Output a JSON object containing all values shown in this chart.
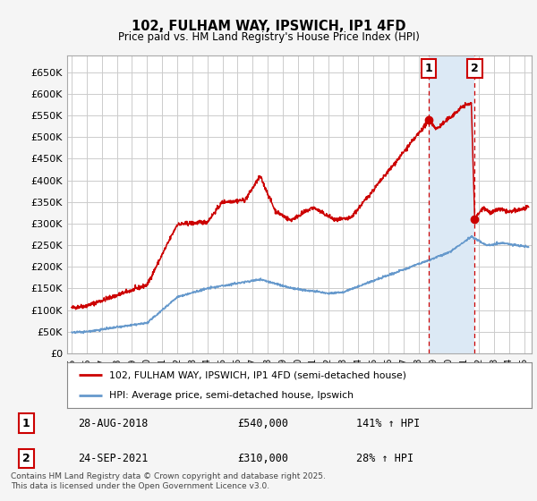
{
  "title": "102, FULHAM WAY, IPSWICH, IP1 4FD",
  "subtitle": "Price paid vs. HM Land Registry's House Price Index (HPI)",
  "ylabel_ticks": [
    "£0",
    "£50K",
    "£100K",
    "£150K",
    "£200K",
    "£250K",
    "£300K",
    "£350K",
    "£400K",
    "£450K",
    "£500K",
    "£550K",
    "£600K",
    "£650K"
  ],
  "ytick_values": [
    0,
    50000,
    100000,
    150000,
    200000,
    250000,
    300000,
    350000,
    400000,
    450000,
    500000,
    550000,
    600000,
    650000
  ],
  "ylim": [
    0,
    690000
  ],
  "xlim_start": 1994.7,
  "xlim_end": 2025.5,
  "red_line_color": "#cc0000",
  "blue_line_color": "#6699cc",
  "shade_color": "#dce9f5",
  "marker1_date": 2018.67,
  "marker1_price": 540000,
  "marker2_date": 2021.73,
  "marker2_price": 310000,
  "legend_label_red": "102, FULHAM WAY, IPSWICH, IP1 4FD (semi-detached house)",
  "legend_label_blue": "HPI: Average price, semi-detached house, Ipswich",
  "footer": "Contains HM Land Registry data © Crown copyright and database right 2025.\nThis data is licensed under the Open Government Licence v3.0.",
  "bg_color": "#f5f5f5",
  "plot_bg_color": "#ffffff",
  "grid_color": "#cccccc"
}
